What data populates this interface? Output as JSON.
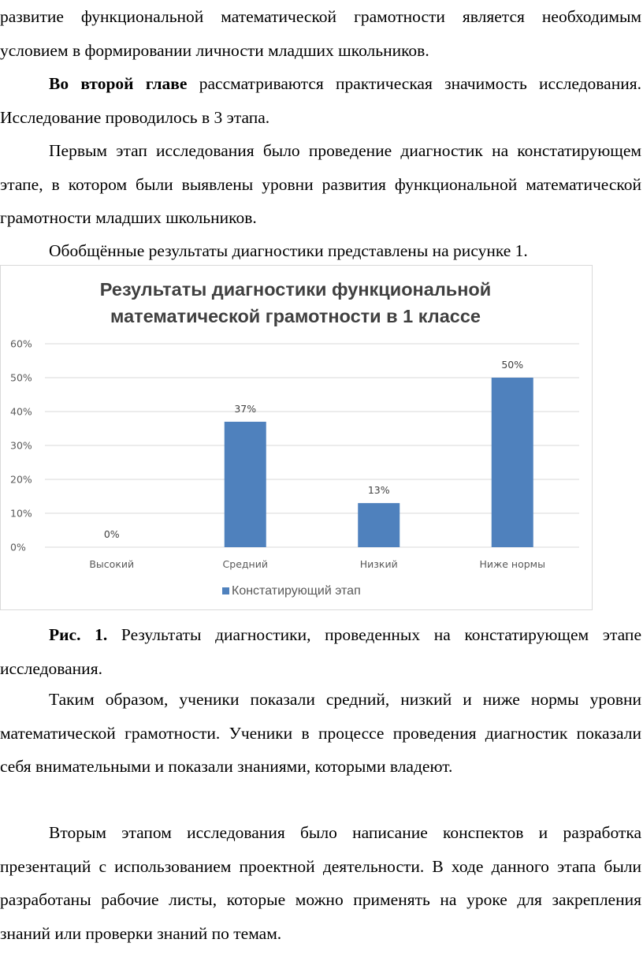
{
  "paragraphs": {
    "p0": "развитие функциональной математической грамотности является необходимым условием в формировании личности младших школьников.",
    "p1_bold": "Во второй главе",
    "p1_rest": " рассматриваются практическая значимость исследования. Исследование проводилось в 3 этапа.",
    "p2": "Первым этап исследования было проведение диагностик на констатирующем этапе, в котором были выявлены уровни развития функциональной математической грамотности младших школьников.",
    "p3": "Обобщённые результаты диагностики представлены на рисунке 1.",
    "caption_bold": "Рис. 1.",
    "caption_rest": " Результаты диагностики, проведенных на констатирующем этапе исследования.",
    "p4": "Таким образом, ученики показали средний, низкий и ниже нормы уровни математической грамотности. Ученики в процессе проведения диагностик показали себя внимательными и показали знаниями, которыми владеют.",
    "p5": "Вторым этапом исследования было написание конспектов и разработка презентаций с использованием проектной деятельности. В ходе данного этапа были разработаны рабочие листы, которые можно применять на уроке для закрепления знаний или проверки знаний по темам."
  },
  "chart_data": {
    "type": "bar",
    "title_line1": "Результаты диагностики функциональной",
    "title_line2": "математической грамотности в 1 классе",
    "categories": [
      "Высокий",
      "Средний",
      "Низкий",
      "Ниже нормы"
    ],
    "series": [
      {
        "name": "Констатирующий этап",
        "values": [
          0,
          37,
          13,
          50
        ],
        "labels": [
          "0%",
          "37%",
          "13%",
          "50%"
        ]
      }
    ],
    "ylim": [
      0,
      60
    ],
    "yticks": [
      0,
      10,
      20,
      30,
      40,
      50,
      60
    ],
    "ytick_labels": [
      "0%",
      "10%",
      "20%",
      "30%",
      "40%",
      "50%",
      "60%"
    ],
    "grid": true,
    "legend_position": "bottom",
    "colors": {
      "bar": "#4f81bd",
      "grid": "#d9d9d9"
    }
  }
}
